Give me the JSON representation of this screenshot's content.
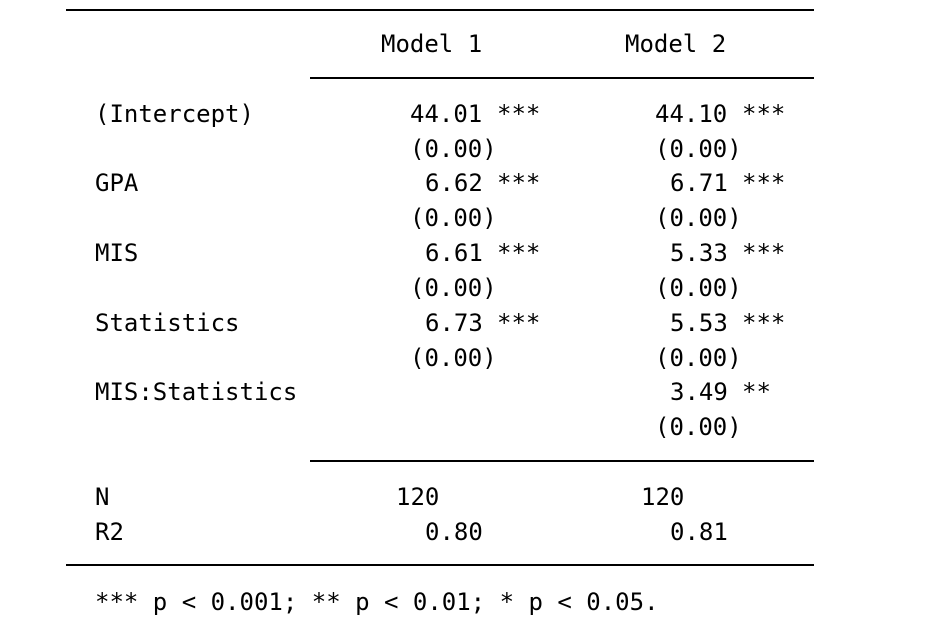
{
  "columns": [
    "Model 1",
    "Model 2"
  ],
  "rows": [
    {
      "term": "(Intercept)",
      "estimates": [
        {
          "value": "44.01",
          "stars": "***",
          "se": "(0.00)"
        },
        {
          "value": "44.10",
          "stars": "***",
          "se": "(0.00)"
        }
      ]
    },
    {
      "term": "GPA",
      "estimates": [
        {
          "value": "6.62",
          "stars": "***",
          "se": "(0.00)"
        },
        {
          "value": "6.71",
          "stars": "***",
          "se": "(0.00)"
        }
      ]
    },
    {
      "term": "MIS",
      "estimates": [
        {
          "value": "6.61",
          "stars": "***",
          "se": "(0.00)"
        },
        {
          "value": "5.33",
          "stars": "***",
          "se": "(0.00)"
        }
      ]
    },
    {
      "term": "Statistics",
      "estimates": [
        {
          "value": "6.73",
          "stars": "***",
          "se": "(0.00)"
        },
        {
          "value": "5.53",
          "stars": "***",
          "se": "(0.00)"
        }
      ]
    },
    {
      "term": "MIS:Statistics",
      "estimates": [
        {
          "value": "",
          "stars": "",
          "se": ""
        },
        {
          "value": "3.49",
          "stars": "**",
          "se": "(0.00)"
        }
      ]
    }
  ],
  "stats": [
    {
      "label": "N",
      "values": [
        "120",
        "120"
      ]
    },
    {
      "label": "R2",
      "values": [
        "0.80",
        "0.81"
      ]
    }
  ],
  "footnote": "*** p < 0.001; ** p < 0.01; * p < 0.05."
}
